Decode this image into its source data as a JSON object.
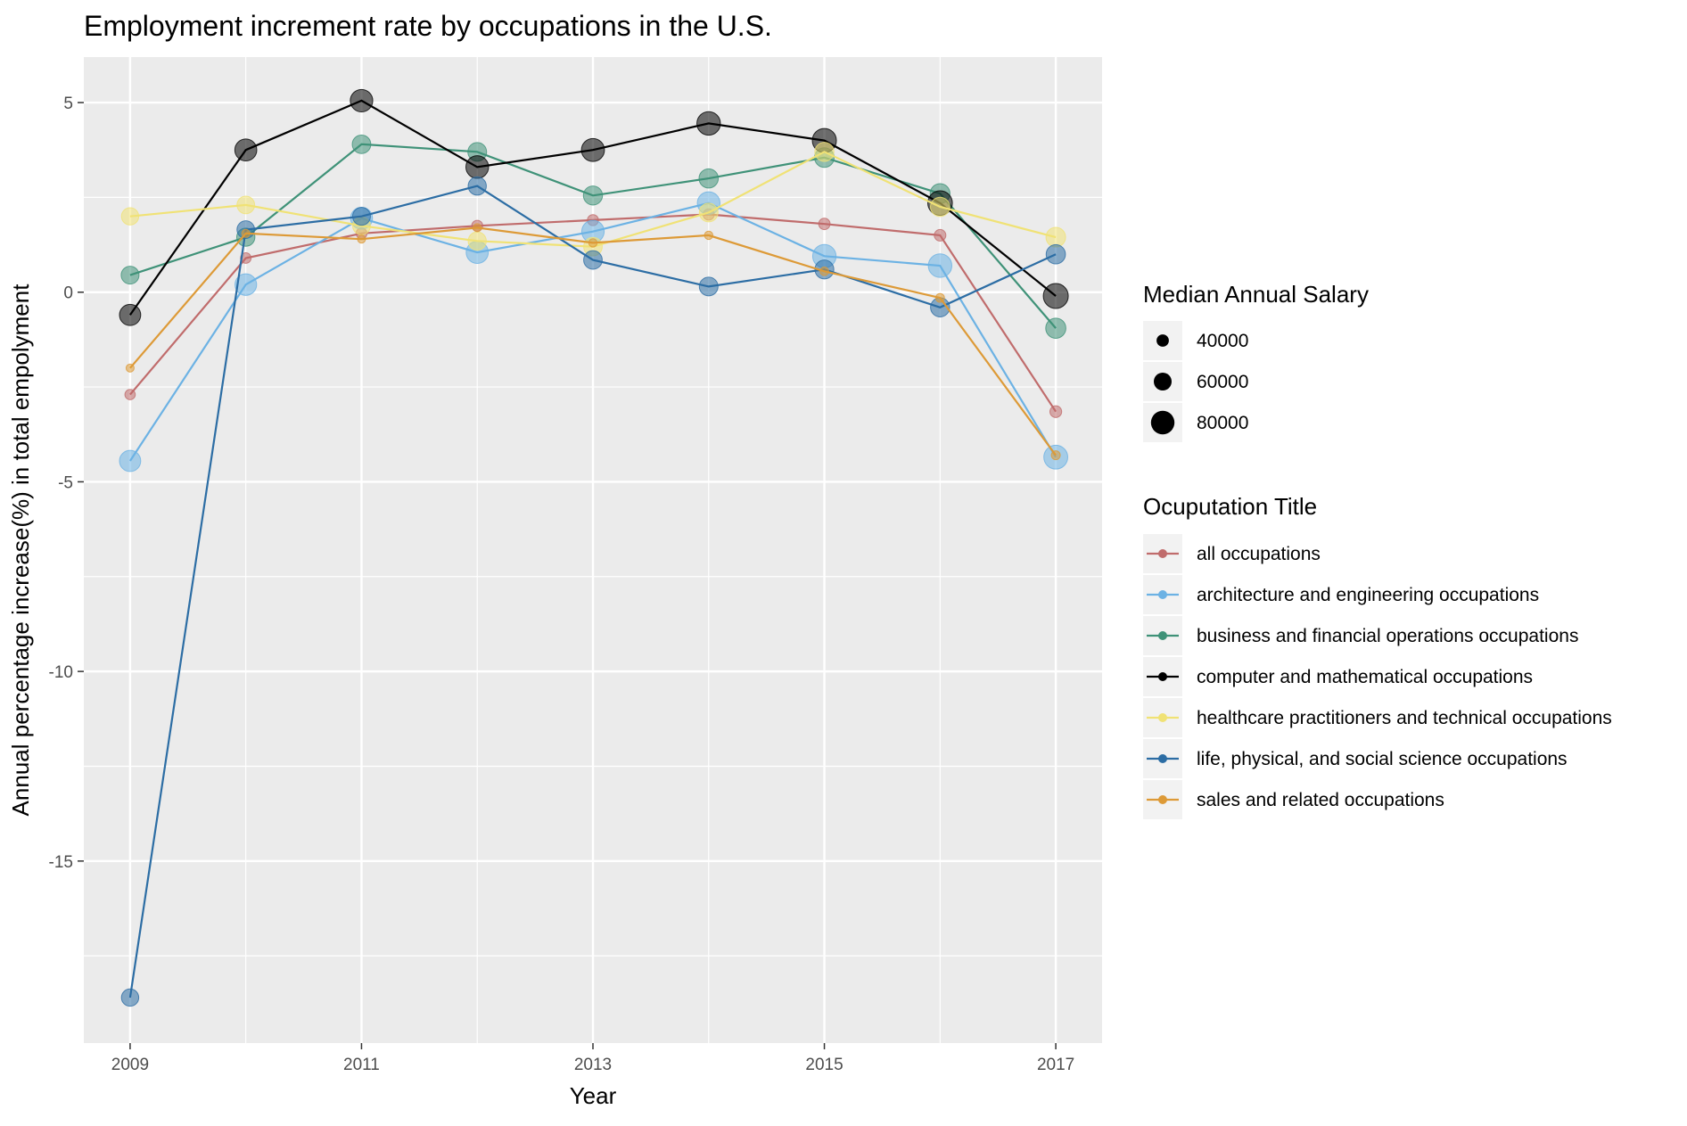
{
  "chart_data": {
    "type": "line",
    "title": "Employment increment rate by occupations in the U.S.",
    "xlabel": "Year",
    "ylabel": "Annual percentage increase(%) in total empolyment",
    "x": [
      2009,
      2010,
      2011,
      2012,
      2013,
      2014,
      2015,
      2016,
      2017
    ],
    "x_ticks": [
      "2009",
      "2011",
      "2013",
      "2015",
      "2017"
    ],
    "y_ticks": [
      "5",
      "0",
      "-5",
      "-10",
      "-15"
    ],
    "xlim": [
      2008.6,
      2017.4
    ],
    "ylim": [
      -19.8,
      6.2
    ],
    "grid": true,
    "legend_position": "right",
    "size_legend": {
      "title": "Median Annual Salary",
      "values": [
        40000,
        60000,
        80000
      ],
      "labels": [
        "40000",
        "60000",
        "80000"
      ]
    },
    "color_legend_title": "Ocuputation Title",
    "series": [
      {
        "name": "all occupations",
        "color": "#c06c6c",
        "values": [
          -2.7,
          0.9,
          1.55,
          1.75,
          1.9,
          2.05,
          1.8,
          1.5,
          -3.15
        ],
        "salary": [
          33000,
          34000,
          35000,
          35500,
          36000,
          36500,
          37000,
          37500,
          38000
        ]
      },
      {
        "name": "architecture and engineering occupations",
        "color": "#6cb2e4",
        "values": [
          -4.45,
          0.2,
          1.95,
          1.05,
          1.6,
          2.35,
          0.95,
          0.7,
          -4.35
        ],
        "salary": [
          72000,
          73000,
          74000,
          75000,
          76000,
          77000,
          79000,
          80000,
          81000
        ]
      },
      {
        "name": "business and financial operations occupations",
        "color": "#3f9278",
        "values": [
          0.45,
          1.45,
          3.9,
          3.7,
          2.55,
          3.0,
          3.55,
          2.6,
          -0.95
        ],
        "salary": [
          60000,
          61000,
          62000,
          63000,
          64000,
          65000,
          66000,
          67000,
          68000
        ]
      },
      {
        "name": "computer and mathematical occupations",
        "color": "#000000",
        "values": [
          -0.6,
          3.75,
          5.05,
          3.3,
          3.75,
          4.45,
          4.0,
          2.35,
          -0.1
        ],
        "salary": [
          72000,
          74000,
          76000,
          77000,
          78000,
          80000,
          82000,
          84000,
          85000
        ]
      },
      {
        "name": "healthcare practitioners and technical occupations",
        "color": "#f0e275",
        "values": [
          2.0,
          2.3,
          1.75,
          1.35,
          1.2,
          2.1,
          3.7,
          2.25,
          1.45
        ],
        "salary": [
          58000,
          59000,
          60000,
          61000,
          62000,
          63000,
          64000,
          65000,
          66000
        ]
      },
      {
        "name": "life, physical, and social science occupations",
        "color": "#2c6da4",
        "values": [
          -18.6,
          1.65,
          2.0,
          2.8,
          0.85,
          0.15,
          0.6,
          -0.4,
          1.0
        ],
        "salary": [
          58000,
          59000,
          60000,
          61000,
          62000,
          63000,
          63500,
          64000,
          65000
        ]
      },
      {
        "name": "sales and related occupations",
        "color": "#dd9a37",
        "values": [
          -2.0,
          1.55,
          1.4,
          1.7,
          1.3,
          1.5,
          0.55,
          -0.15,
          -4.3
        ],
        "salary": [
          24000,
          24500,
          25000,
          25500,
          26000,
          26500,
          27000,
          27500,
          28000
        ]
      }
    ]
  }
}
